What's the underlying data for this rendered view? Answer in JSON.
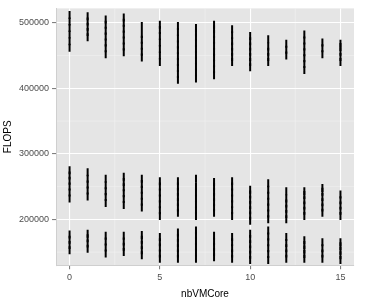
{
  "chart_data": {
    "type": "scatter",
    "x_label": "nbVMCore",
    "y_label": "FLOPS",
    "x": [
      0,
      0,
      0,
      0,
      0,
      0,
      0,
      0,
      0,
      0,
      0,
      0,
      0,
      0,
      0,
      0,
      1,
      1,
      1,
      1,
      1,
      1,
      1,
      1,
      1,
      1,
      1,
      1,
      1,
      1,
      2,
      2,
      2,
      2,
      2,
      2,
      2,
      2,
      2,
      2,
      2,
      2,
      2,
      2,
      2,
      2,
      3,
      3,
      3,
      3,
      3,
      3,
      3,
      3,
      3,
      3,
      3,
      3,
      3,
      3,
      3,
      3,
      3,
      4,
      4,
      4,
      4,
      4,
      4,
      4,
      4,
      4,
      4,
      4,
      4,
      4,
      4,
      4,
      4,
      4,
      5,
      5,
      5,
      5,
      5,
      5,
      5,
      5,
      5,
      5,
      5,
      5,
      5,
      5,
      5,
      5,
      5,
      5,
      5,
      6,
      6,
      6,
      6,
      6,
      6,
      6,
      6,
      6,
      6,
      6,
      6,
      6,
      6,
      6,
      6,
      6,
      6,
      6,
      6,
      6,
      6,
      6,
      7,
      7,
      7,
      7,
      7,
      7,
      7,
      7,
      7,
      7,
      7,
      7,
      7,
      7,
      7,
      7,
      7,
      7,
      7,
      7,
      7,
      7,
      7,
      8,
      8,
      8,
      8,
      8,
      8,
      8,
      8,
      8,
      8,
      8,
      8,
      8,
      8,
      8,
      8,
      8,
      8,
      8,
      8,
      8,
      8,
      9,
      9,
      9,
      9,
      9,
      9,
      9,
      9,
      9,
      9,
      9,
      9,
      9,
      9,
      9,
      9,
      9,
      9,
      9,
      10,
      10,
      10,
      10,
      10,
      10,
      10,
      10,
      10,
      10,
      10,
      10,
      10,
      10,
      10,
      10,
      10,
      10,
      10,
      10,
      11,
      11,
      11,
      11,
      11,
      11,
      11,
      11,
      11,
      11,
      11,
      11,
      11,
      11,
      11,
      11,
      11,
      11,
      12,
      12,
      12,
      12,
      12,
      12,
      12,
      12,
      12,
      12,
      12,
      12,
      12,
      12,
      13,
      13,
      13,
      13,
      13,
      13,
      13,
      13,
      13,
      13,
      13,
      13,
      13,
      13,
      13,
      13,
      13,
      13,
      14,
      14,
      14,
      14,
      14,
      14,
      14,
      14,
      14,
      14,
      14,
      14,
      14,
      15,
      15,
      15,
      15,
      15,
      15,
      15,
      15,
      15,
      15,
      15,
      15,
      15,
      15,
      15
    ],
    "values": [
      462000,
      472000,
      482000,
      492000,
      502000,
      512000,
      232000,
      241000,
      250000,
      259000,
      267000,
      275000,
      153000,
      161000,
      169000,
      177000,
      478000,
      486000,
      494000,
      502000,
      510000,
      235000,
      244000,
      253000,
      262000,
      272000,
      155000,
      163000,
      171000,
      178000,
      452000,
      461000,
      470000,
      479000,
      488000,
      497000,
      505000,
      225000,
      234000,
      243000,
      252000,
      262000,
      148000,
      157000,
      166000,
      175000,
      455000,
      464000,
      473000,
      482000,
      491000,
      500000,
      508000,
      222000,
      231000,
      240000,
      249000,
      257000,
      265000,
      150000,
      158000,
      166000,
      175000,
      447000,
      456000,
      465000,
      474000,
      483000,
      495000,
      218000,
      227000,
      236000,
      245000,
      254000,
      262000,
      145000,
      153000,
      161000,
      169000,
      176000,
      440000,
      450000,
      460000,
      470000,
      480000,
      489000,
      497000,
      205000,
      214000,
      223000,
      232000,
      241000,
      250000,
      258000,
      140000,
      148000,
      157000,
      165000,
      173000,
      413000,
      422000,
      431000,
      440000,
      449000,
      458000,
      467000,
      476000,
      486000,
      495000,
      210000,
      218000,
      226000,
      234000,
      242000,
      250000,
      258000,
      140000,
      148000,
      156000,
      164000,
      172000,
      180000,
      415000,
      424000,
      433000,
      442000,
      451000,
      460000,
      469000,
      478000,
      485000,
      492000,
      205000,
      214000,
      223000,
      232000,
      241000,
      250000,
      262000,
      140000,
      149000,
      158000,
      167000,
      175000,
      183000,
      420000,
      429000,
      438000,
      447000,
      456000,
      465000,
      474000,
      483000,
      490000,
      497000,
      210000,
      218000,
      226000,
      234000,
      242000,
      250000,
      257000,
      142000,
      150000,
      158000,
      166000,
      175000,
      440000,
      448000,
      456000,
      464000,
      472000,
      481000,
      490000,
      205000,
      214000,
      223000,
      232000,
      241000,
      250000,
      258000,
      140000,
      148000,
      156000,
      165000,
      173000,
      432000,
      440000,
      448000,
      456000,
      464000,
      472000,
      480000,
      198000,
      206000,
      214000,
      222000,
      230000,
      238000,
      245000,
      138000,
      146000,
      154000,
      162000,
      170000,
      178000,
      440000,
      448000,
      456000,
      464000,
      475000,
      200000,
      209000,
      218000,
      227000,
      236000,
      245000,
      255000,
      138000,
      147000,
      156000,
      165000,
      174000,
      183000,
      450000,
      459000,
      468000,
      200000,
      208000,
      216000,
      224000,
      232000,
      243000,
      140000,
      148000,
      156000,
      164000,
      173000,
      428000,
      437000,
      446000,
      455000,
      464000,
      473000,
      482000,
      205000,
      213000,
      221000,
      229000,
      237000,
      243000,
      140000,
      147000,
      154000,
      161000,
      168000,
      452000,
      461000,
      470000,
      210000,
      218000,
      226000,
      234000,
      242000,
      248000,
      140000,
      148000,
      156000,
      165000,
      440000,
      448000,
      456000,
      463000,
      468000,
      205000,
      213000,
      221000,
      229000,
      238000,
      138000,
      145000,
      152000,
      159000,
      165000
    ],
    "color": "#000000",
    "xlim": [
      -0.75,
      15.75
    ],
    "xticks": [
      0,
      5,
      10,
      15
    ],
    "ylim": [
      130000,
      522000
    ],
    "yticks": [
      200000,
      300000,
      400000,
      500000
    ],
    "grid": true
  }
}
